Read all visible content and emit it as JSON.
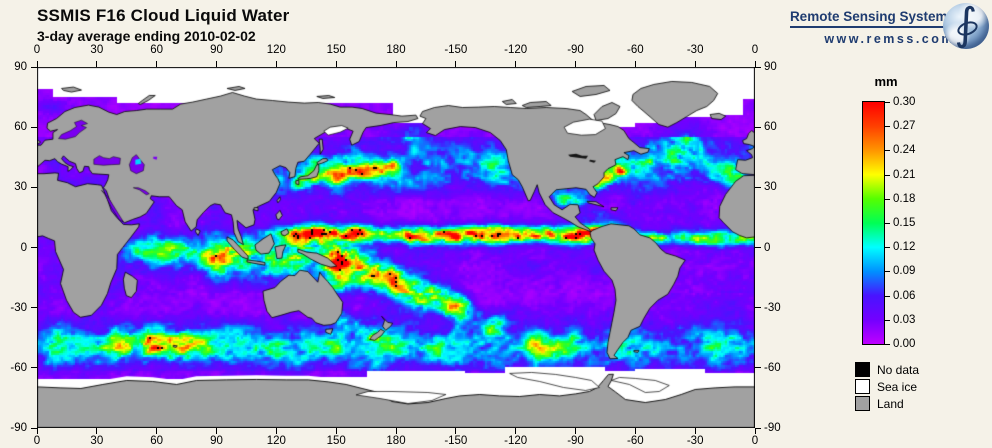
{
  "header": {
    "title": "SSMIS F16 Cloud Liquid Water",
    "subtitle": "3-day average ending 2010-02-02",
    "logo": {
      "name": "Remote Sensing Systems",
      "url": "www.remss.com"
    }
  },
  "colors": {
    "background": "#F5F2E8",
    "land": "#A1A1A1",
    "sea_ice": "#FFFFFF",
    "no_data": "#000000",
    "coast": "#000000",
    "lake_water": "#7A00F0",
    "logo_text": "#1F3C70"
  },
  "chart_data": {
    "type": "heatmap",
    "title": "SSMIS F16 Cloud Liquid Water",
    "subtitle": "3-day average ending 2010-02-02",
    "units": "mm",
    "value_range": [
      0.0,
      0.3
    ],
    "projection": "equirectangular, longitude 0 to 360 east (dateline centered), latitude 90 to -90",
    "axes": {
      "lon_tick_labels": [
        "0",
        "30",
        "60",
        "90",
        "120",
        "150",
        "180",
        "-150",
        "-120",
        "-90",
        "-60",
        "-30",
        "0"
      ],
      "lat_tick_labels": [
        "90",
        "60",
        "30",
        "0",
        "-30",
        "-60",
        "-90"
      ],
      "lon_range": [
        0,
        360
      ],
      "lat_range": [
        -90,
        90
      ],
      "grid": false
    },
    "colorbar": {
      "label": "mm",
      "tick_labels": [
        "0.30",
        "0.27",
        "0.24",
        "0.21",
        "0.18",
        "0.15",
        "0.12",
        "0.09",
        "0.06",
        "0.03",
        "0.00"
      ],
      "palette_stops": [
        {
          "v": 0.0,
          "color": "#BF00FF"
        },
        {
          "v": 0.03,
          "color": "#7300FF"
        },
        {
          "v": 0.06,
          "color": "#4814FF"
        },
        {
          "v": 0.09,
          "color": "#0091FF"
        },
        {
          "v": 0.12,
          "color": "#00FFFF"
        },
        {
          "v": 0.15,
          "color": "#00FF55"
        },
        {
          "v": 0.18,
          "color": "#55FF00"
        },
        {
          "v": 0.21,
          "color": "#FFFF00"
        },
        {
          "v": 0.24,
          "color": "#FF9500"
        },
        {
          "v": 0.27,
          "color": "#FF4000"
        },
        {
          "v": 0.3,
          "color": "#FF0000"
        }
      ]
    },
    "legend": [
      {
        "label": "No data",
        "color": "#000000"
      },
      {
        "label": "Sea ice",
        "color": "#FFFFFF"
      },
      {
        "label": "Land",
        "color": "#A1A1A1"
      }
    ],
    "regions": [
      {
        "region": "Pacific ITCZ band, 4-10N from 150E to 95W",
        "value_mm": "0.25-0.30"
      },
      {
        "region": "West Pacific warm pool and SPCZ diagonal (150E to 150W, 5-30S)",
        "value_mm": "0.25-0.30"
      },
      {
        "region": "Atlantic ITCZ, 0-8N",
        "value_mm": "0.15-0.30"
      },
      {
        "region": "South Indian Ocean storm blob (40-80E, 42-52S)",
        "value_mm": "0.25-0.30"
      },
      {
        "region": "Southern Ocean storm track (40-60S, circumpolar)",
        "value_mm": "0.09-0.21"
      },
      {
        "region": "North Pacific storm track (30-50N, 140E-130W)",
        "value_mm": "0.09-0.21"
      },
      {
        "region": "North Atlantic cyclone swirl (35-60N, 60-10W)",
        "value_mm": "0.09-0.25"
      },
      {
        "region": "Gulf of Mexico",
        "value_mm": "0.15-0.30"
      },
      {
        "region": "Subtropical gyres (15-30 N and S)",
        "value_mm": "0.00-0.04"
      },
      {
        "region": "Heavy-rain cells inside red areas (flagged black)",
        "value_mm": "no data"
      },
      {
        "region": "Arctic above ~72N, Hudson Bay, Bering/Okhotsk margins, Antarctic fringe",
        "value_mm": "sea ice"
      }
    ]
  }
}
